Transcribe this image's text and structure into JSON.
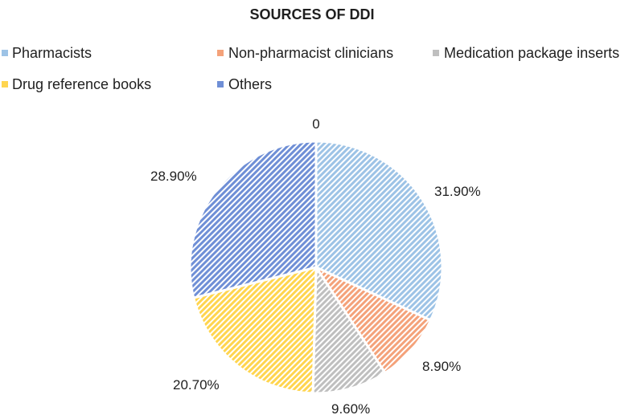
{
  "chart_data": {
    "type": "pie",
    "title": "SOURCES OF DDI",
    "categories": [
      "Pharmacists",
      "Non-pharmacist clinicians",
      "Medication package inserts",
      "Drug reference books",
      "Others"
    ],
    "values": [
      31.9,
      8.9,
      9.6,
      20.7,
      28.9
    ],
    "labels": [
      "31.90%",
      "8.90%",
      "9.60%",
      "20.70%",
      "28.90%"
    ],
    "extra_label": "0",
    "colors": [
      "#9dc3e6",
      "#f4a27a",
      "#bfbfbf",
      "#ffd54f",
      "#6f8fd6"
    ],
    "legend_position": "top"
  }
}
